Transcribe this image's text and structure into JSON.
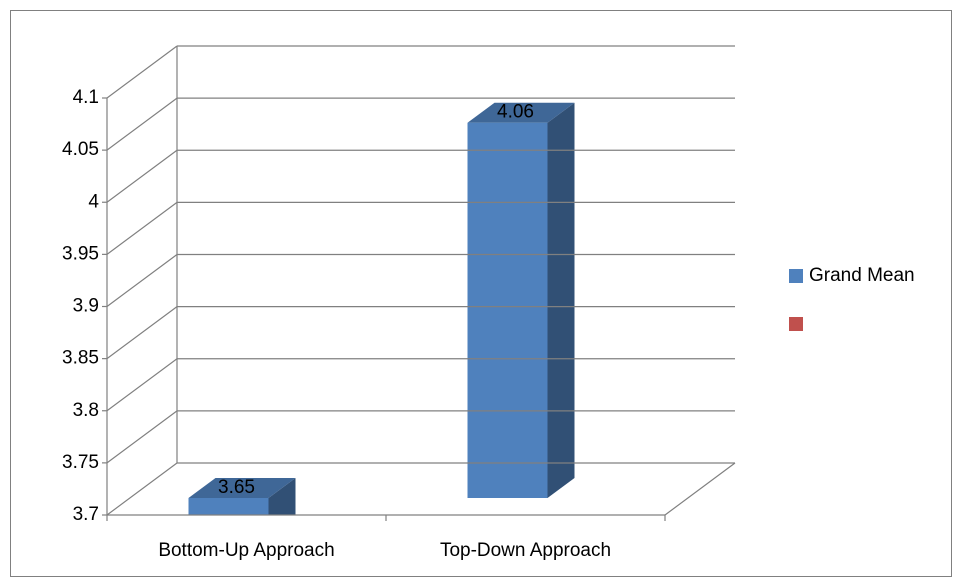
{
  "chart_data": {
    "type": "bar3d",
    "categories": [
      "Bottom-Up Approach",
      "Top-Down Approach"
    ],
    "series": [
      {
        "name": "Grand Mean",
        "color": "#4f81bd",
        "values": [
          3.65,
          4.06
        ]
      },
      {
        "name": null,
        "color": "#c0504d",
        "values": [
          null,
          null
        ]
      }
    ],
    "ylim": [
      3.7,
      4.1
    ],
    "yticks": [
      3.7,
      3.75,
      3.8,
      3.85,
      3.9,
      3.95,
      4,
      4.05,
      4.1
    ],
    "grid": true,
    "legend": "right"
  }
}
